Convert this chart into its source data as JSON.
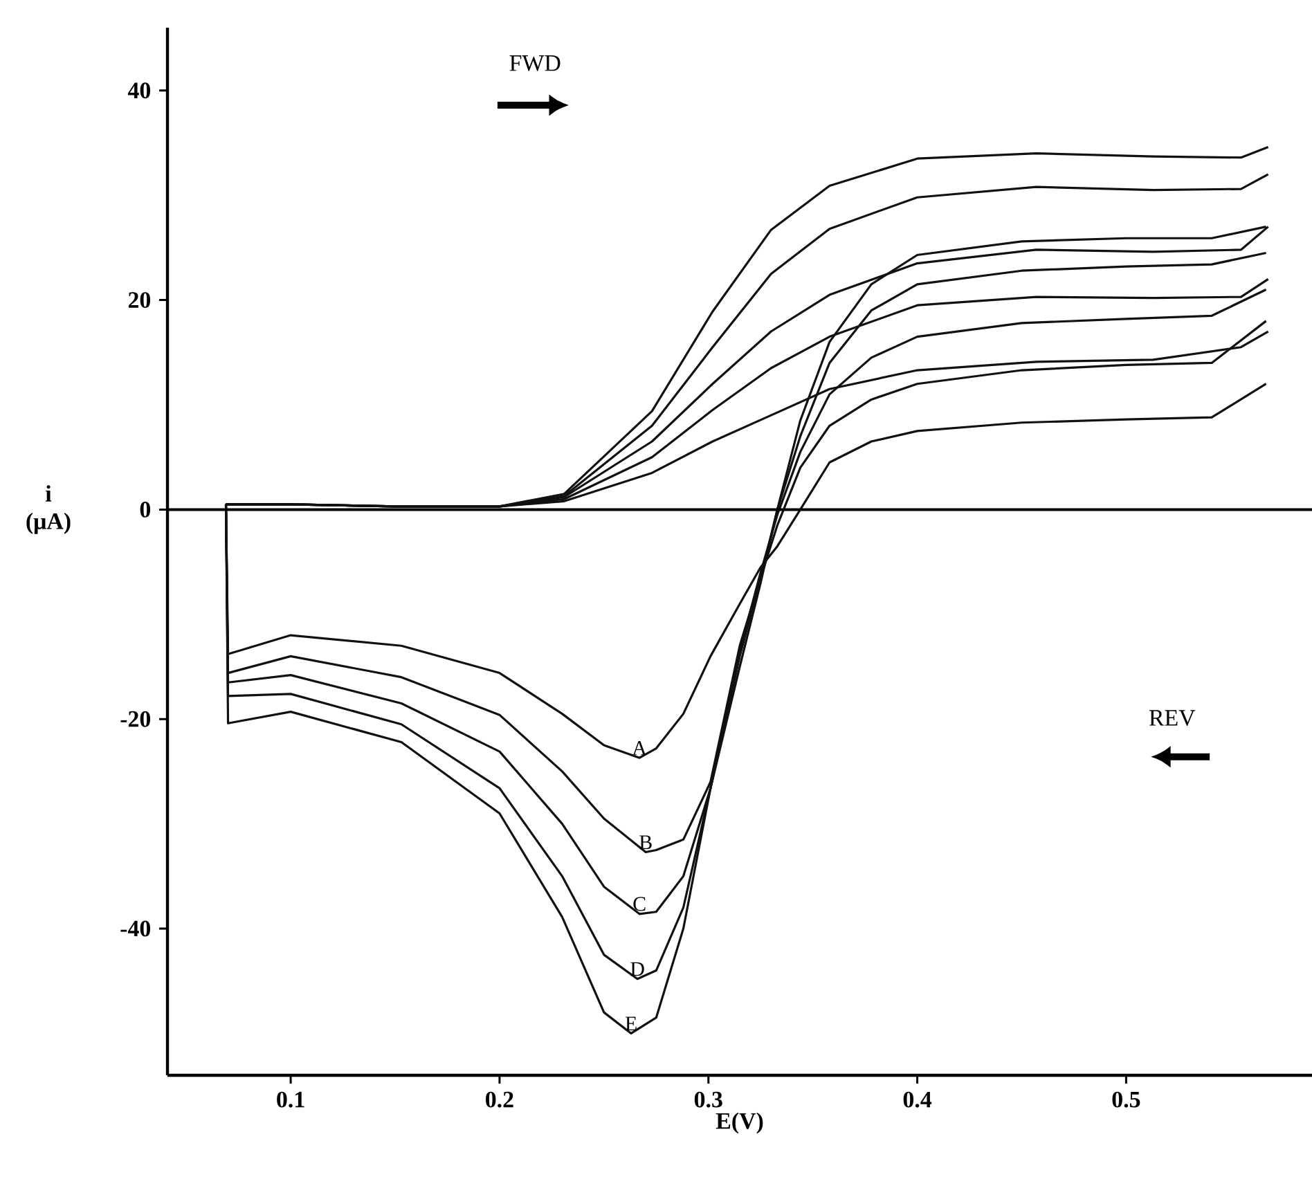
{
  "chart_data": {
    "type": "line",
    "xlabel": "E(V)",
    "ylabel": "i (μA)",
    "marker": "none",
    "legend": false,
    "xlim": [
      0.041,
      0.589
    ],
    "ylim": [
      -54,
      46
    ],
    "xticks": [
      0.1,
      0.2,
      0.3,
      0.4,
      0.5
    ],
    "yticks": [
      -40,
      -20,
      0,
      20,
      40
    ],
    "ref_lines": [
      {
        "axis": "y",
        "value": 0
      }
    ],
    "annotations": [
      "FWD",
      "REV"
    ],
    "series": [
      {
        "color": "#111111",
        "x": [
          0.069,
          0.1,
          0.15,
          0.2,
          0.231,
          0.273,
          0.302,
          0.33,
          0.358,
          0.4,
          0.457,
          0.513,
          0.555,
          0.568
        ],
        "values": [
          0.5,
          0.5,
          0.3,
          0.3,
          0.8,
          3.5,
          6.5,
          9,
          11.5,
          13.3,
          14.1,
          14.3,
          15.5,
          17
        ]
      },
      {
        "name": "A",
        "color": "#111111",
        "x": [
          0.567,
          0.541,
          0.5,
          0.45,
          0.4,
          0.378,
          0.358,
          0.344,
          0.333,
          0.325,
          0.315,
          0.301,
          0.288,
          0.275,
          0.267,
          0.25,
          0.23,
          0.2,
          0.153,
          0.1,
          0.07,
          0.069
        ],
        "values": [
          12,
          8.8,
          8.6,
          8.3,
          7.5,
          6.5,
          4.5,
          0,
          -3.5,
          -5.5,
          -9,
          -14,
          -19.5,
          -22.8,
          -23.7,
          -22.5,
          -19.5,
          -15.6,
          -13,
          -12,
          -13.8,
          0.5
        ]
      },
      {
        "color": "#111111",
        "x": [
          0.069,
          0.1,
          0.15,
          0.2,
          0.231,
          0.273,
          0.302,
          0.33,
          0.358,
          0.4,
          0.457,
          0.513,
          0.555,
          0.568
        ],
        "values": [
          0.5,
          0.5,
          0.3,
          0.3,
          1,
          5,
          9.5,
          13.5,
          16.5,
          19.5,
          20.3,
          20.2,
          20.3,
          22
        ]
      },
      {
        "name": "B",
        "color": "#111111",
        "x": [
          0.567,
          0.541,
          0.5,
          0.45,
          0.4,
          0.378,
          0.358,
          0.344,
          0.333,
          0.325,
          0.315,
          0.301,
          0.288,
          0.275,
          0.27,
          0.25,
          0.23,
          0.2,
          0.153,
          0.1,
          0.07,
          0.069
        ],
        "values": [
          18,
          14,
          13.8,
          13.3,
          12,
          10.5,
          8,
          4,
          -1.5,
          -6.5,
          -13,
          -26,
          -31.5,
          -32.5,
          -32.7,
          -29.5,
          -25,
          -19.6,
          -16,
          -14,
          -15.6,
          0.5
        ]
      },
      {
        "color": "#111111",
        "x": [
          0.069,
          0.1,
          0.15,
          0.2,
          0.231,
          0.273,
          0.302,
          0.33,
          0.358,
          0.4,
          0.457,
          0.513,
          0.555,
          0.568
        ],
        "values": [
          0.5,
          0.5,
          0.3,
          0.3,
          1.2,
          6.5,
          12,
          17,
          20.5,
          23.5,
          24.8,
          24.6,
          24.8,
          27
        ]
      },
      {
        "name": "C",
        "color": "#111111",
        "x": [
          0.567,
          0.541,
          0.5,
          0.45,
          0.4,
          0.378,
          0.358,
          0.344,
          0.333,
          0.325,
          0.315,
          0.301,
          0.288,
          0.275,
          0.267,
          0.25,
          0.23,
          0.2,
          0.153,
          0.1,
          0.07,
          0.069
        ],
        "values": [
          21,
          18.5,
          18.2,
          17.8,
          16.5,
          14.5,
          11,
          5.5,
          -0.5,
          -6,
          -13.5,
          -26.6,
          -35,
          -38.4,
          -38.6,
          -36,
          -30,
          -23.1,
          -18.5,
          -15.8,
          -16.5,
          0.5
        ]
      },
      {
        "color": "#111111",
        "x": [
          0.069,
          0.1,
          0.15,
          0.2,
          0.231,
          0.273,
          0.302,
          0.33,
          0.358,
          0.4,
          0.457,
          0.513,
          0.555,
          0.568
        ],
        "values": [
          0.5,
          0.5,
          0.3,
          0.3,
          1.3,
          8,
          15.5,
          22.5,
          26.8,
          29.8,
          30.8,
          30.5,
          30.6,
          32
        ]
      },
      {
        "name": "D",
        "color": "#111111",
        "x": [
          0.567,
          0.541,
          0.5,
          0.45,
          0.4,
          0.378,
          0.358,
          0.344,
          0.333,
          0.325,
          0.315,
          0.301,
          0.288,
          0.275,
          0.266,
          0.25,
          0.23,
          0.2,
          0.153,
          0.1,
          0.07,
          0.069
        ],
        "values": [
          24.5,
          23.4,
          23.2,
          22.8,
          21.5,
          19,
          14,
          7,
          0,
          -6.5,
          -14,
          -26.6,
          -38,
          -44,
          -44.8,
          -42.5,
          -35,
          -26.6,
          -20.5,
          -17.6,
          -17.8,
          0.5
        ]
      },
      {
        "color": "#111111",
        "x": [
          0.069,
          0.1,
          0.15,
          0.2,
          0.231,
          0.273,
          0.302,
          0.33,
          0.358,
          0.4,
          0.457,
          0.513,
          0.555,
          0.568
        ],
        "values": [
          0.5,
          0.5,
          0.3,
          0.3,
          1.5,
          9.4,
          18.9,
          26.7,
          30.9,
          33.5,
          34,
          33.7,
          33.6,
          34.6
        ]
      },
      {
        "name": "E",
        "color": "#111111",
        "x": [
          0.567,
          0.541,
          0.5,
          0.45,
          0.4,
          0.378,
          0.358,
          0.344,
          0.333,
          0.325,
          0.315,
          0.301,
          0.288,
          0.275,
          0.263,
          0.25,
          0.23,
          0.2,
          0.153,
          0.1,
          0.07,
          0.069
        ],
        "values": [
          27,
          25.9,
          25.9,
          25.6,
          24.3,
          21.5,
          16,
          8.5,
          0,
          -7,
          -15,
          -26.6,
          -40,
          -48.5,
          -50,
          -48,
          -38.9,
          -29,
          -22.2,
          -19.3,
          -20.4,
          0.5
        ]
      }
    ]
  }
}
